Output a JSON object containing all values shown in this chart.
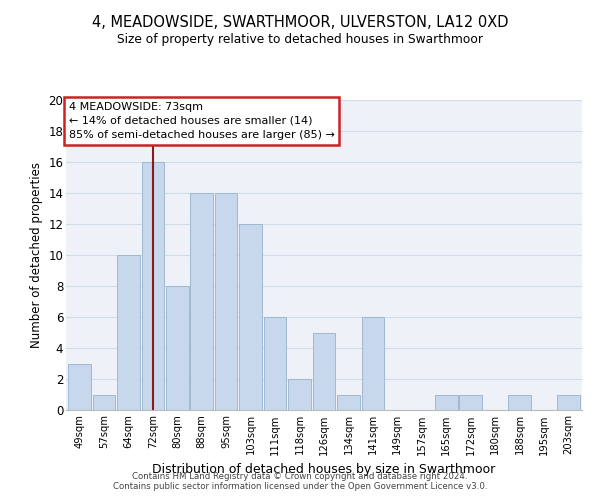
{
  "title": "4, MEADOWSIDE, SWARTHMOOR, ULVERSTON, LA12 0XD",
  "subtitle": "Size of property relative to detached houses in Swarthmoor",
  "xlabel": "Distribution of detached houses by size in Swarthmoor",
  "ylabel": "Number of detached properties",
  "bar_color": "#c8d8ec",
  "bar_edge_color": "#a0b8d0",
  "categories": [
    "49sqm",
    "57sqm",
    "64sqm",
    "72sqm",
    "80sqm",
    "88sqm",
    "95sqm",
    "103sqm",
    "111sqm",
    "118sqm",
    "126sqm",
    "134sqm",
    "141sqm",
    "149sqm",
    "157sqm",
    "165sqm",
    "172sqm",
    "180sqm",
    "188sqm",
    "195sqm",
    "203sqm"
  ],
  "values": [
    3,
    1,
    10,
    16,
    8,
    14,
    14,
    12,
    6,
    2,
    5,
    1,
    6,
    0,
    0,
    1,
    1,
    0,
    1,
    0,
    1
  ],
  "ylim": [
    0,
    20
  ],
  "yticks": [
    0,
    2,
    4,
    6,
    8,
    10,
    12,
    14,
    16,
    18,
    20
  ],
  "annotation_title": "4 MEADOWSIDE: 73sqm",
  "annotation_line1": "← 14% of detached houses are smaller (14)",
  "annotation_line2": "85% of semi-detached houses are larger (85) →",
  "footnote1": "Contains HM Land Registry data © Crown copyright and database right 2024.",
  "footnote2": "Contains public sector information licensed under the Open Government Licence v3.0.",
  "grid_color": "#d0dce8",
  "background_color": "#eef2f8",
  "red_line_x": 3,
  "red_line_color": "#8b1a1a"
}
